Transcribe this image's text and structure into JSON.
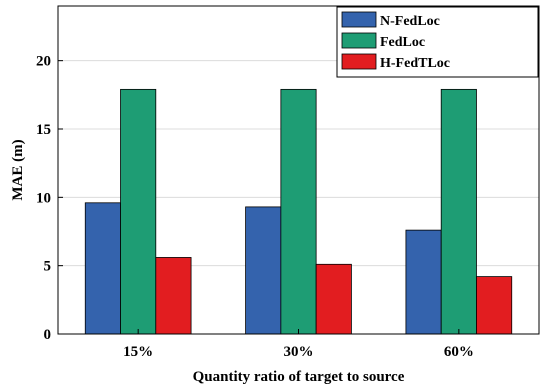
{
  "chart_data": {
    "type": "bar",
    "categories": [
      "15%",
      "30%",
      "60%"
    ],
    "series": [
      {
        "name": "N-FedLoc",
        "values": [
          9.6,
          9.3,
          7.6
        ],
        "color": "#3463ad"
      },
      {
        "name": "FedLoc",
        "values": [
          17.9,
          17.9,
          17.9
        ],
        "color": "#1e9d74"
      },
      {
        "name": "H-FedTLoc",
        "values": [
          5.6,
          5.1,
          4.2
        ],
        "color": "#e21d20"
      }
    ],
    "xlabel": "Quantity ratio of target to source",
    "ylabel": "MAE (m)",
    "ylim": [
      0,
      24
    ],
    "yticks": [
      0,
      5,
      10,
      15,
      20
    ],
    "grid": true,
    "legend_position": "top-right"
  }
}
